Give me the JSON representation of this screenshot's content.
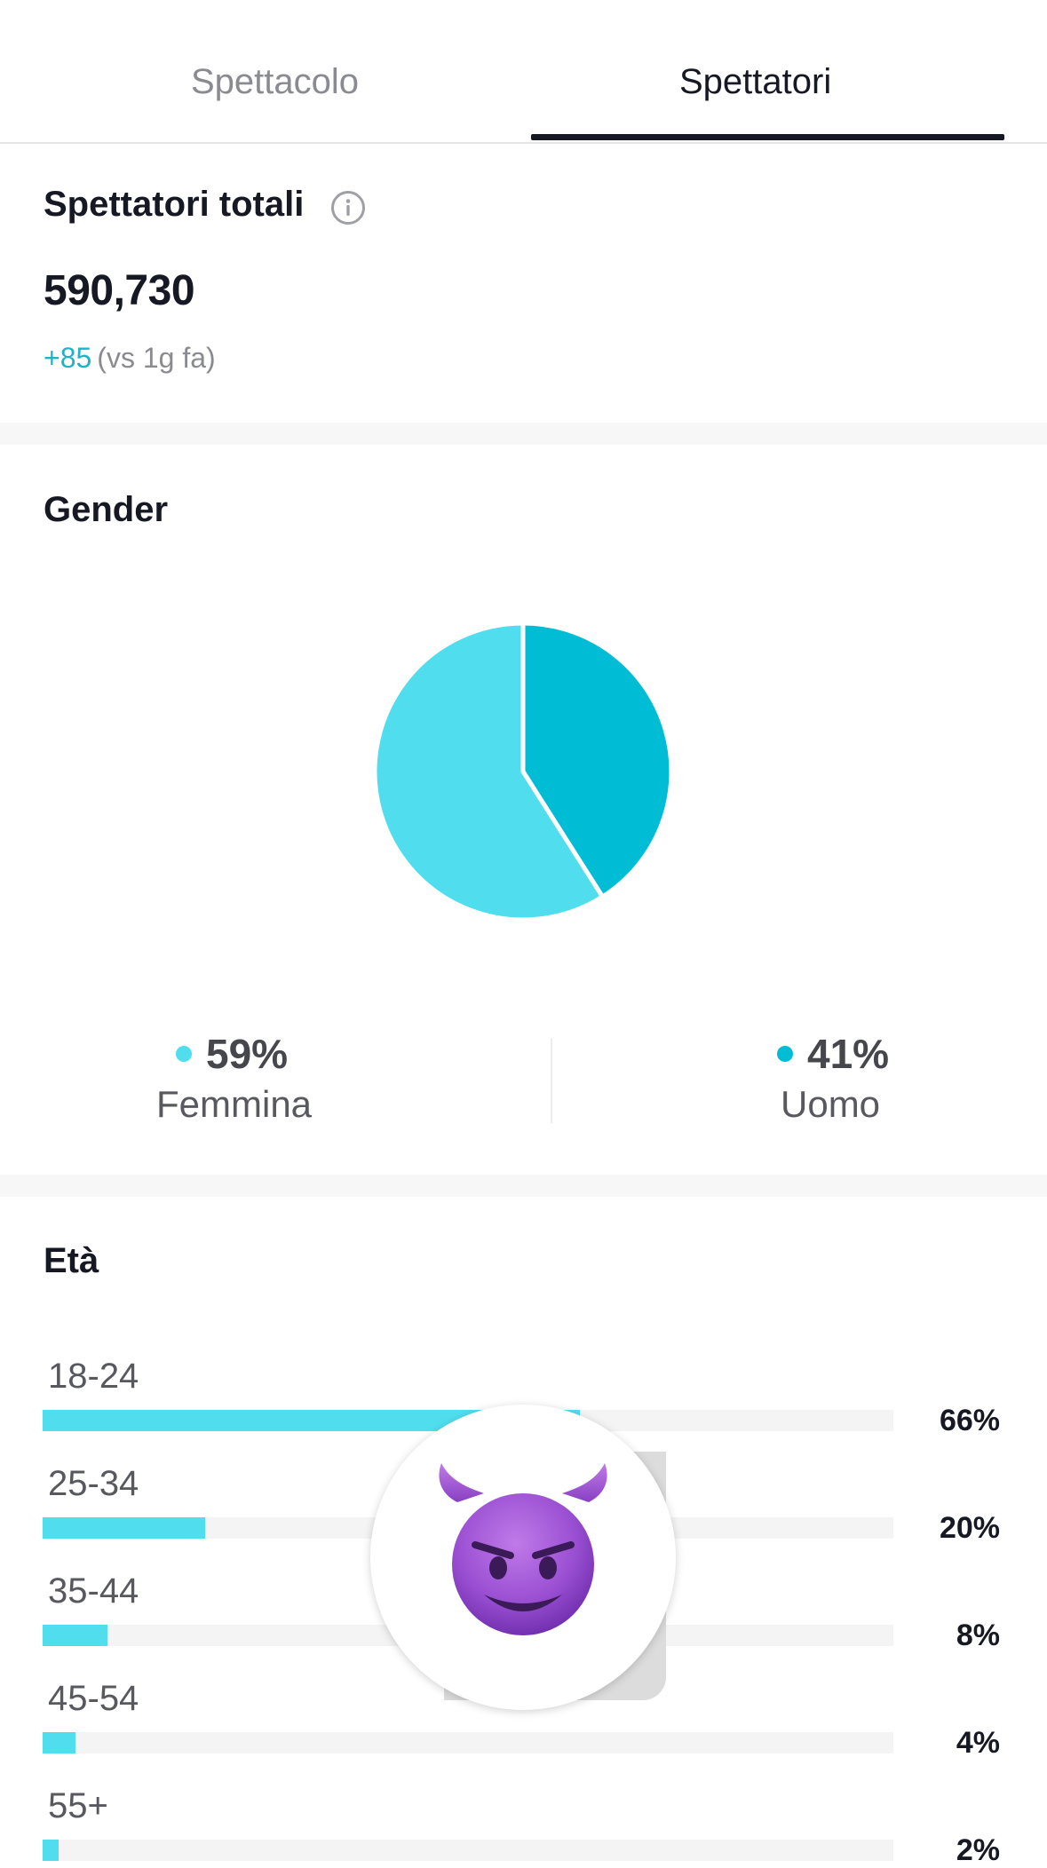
{
  "tabs": [
    {
      "label": "Spettacolo",
      "active": false
    },
    {
      "label": "Spettatori",
      "active": true
    }
  ],
  "total_viewers": {
    "title": "Spettatori totali",
    "value": "590,730",
    "delta": "+85",
    "delta_context": "(vs 1g fa)"
  },
  "gender": {
    "title": "Gender",
    "items": [
      {
        "percent": "59%",
        "label": "Femmina",
        "color": "#50deef"
      },
      {
        "percent": "41%",
        "label": "Uomo",
        "color": "#00bcd4"
      }
    ]
  },
  "age": {
    "title": "Età",
    "rows": [
      {
        "range": "18-24",
        "percent": "66%",
        "value": 66
      },
      {
        "range": "25-34",
        "percent": "20%",
        "value": 20
      },
      {
        "range": "35-44",
        "percent": "8%",
        "value": 8
      },
      {
        "range": "45-54",
        "percent": "4%",
        "value": 4
      },
      {
        "range": "55+",
        "percent": "2%",
        "value": 2
      }
    ]
  },
  "overlay": {
    "emoji": "😈",
    "icon": "smiling-devil-emoji"
  },
  "chart_data": [
    {
      "type": "pie",
      "title": "Gender",
      "categories": [
        "Femmina",
        "Uomo"
      ],
      "values": [
        59,
        41
      ],
      "colors": [
        "#50deef",
        "#00bcd4"
      ]
    },
    {
      "type": "bar",
      "title": "Età",
      "orientation": "horizontal",
      "categories": [
        "18-24",
        "25-34",
        "35-44",
        "45-54",
        "55+"
      ],
      "values": [
        66,
        20,
        8,
        4,
        2
      ],
      "xlim": [
        0,
        100
      ]
    }
  ]
}
